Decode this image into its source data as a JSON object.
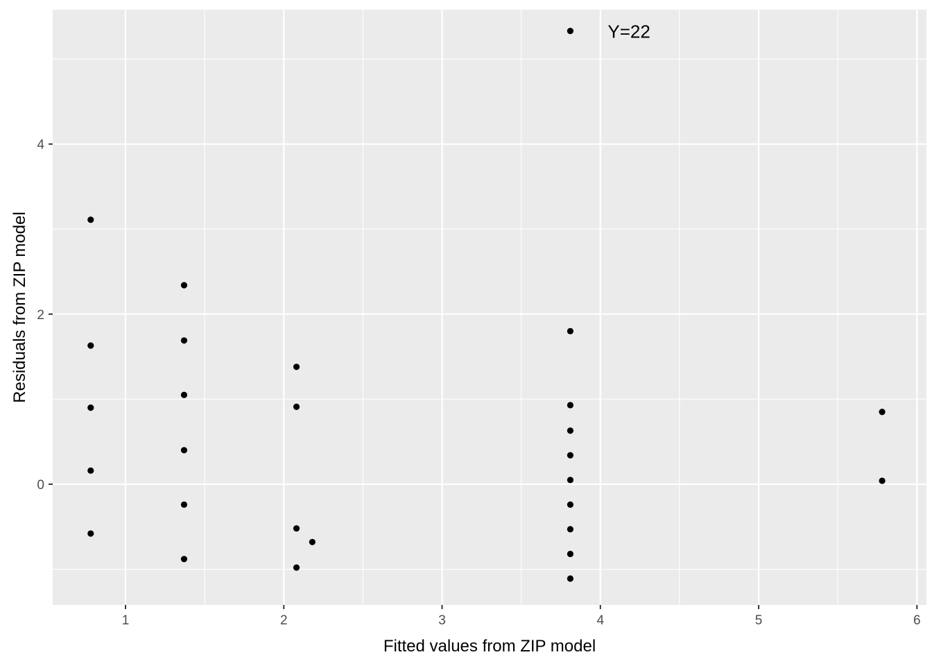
{
  "chart_data": {
    "type": "scatter",
    "title": "",
    "xlabel": "Fitted values from ZIP model",
    "ylabel": "Residuals from ZIP model",
    "xlim": [
      0.54,
      6.06
    ],
    "ylim": [
      -1.42,
      5.58
    ],
    "x_ticks": [
      1,
      2,
      3,
      4,
      5,
      6
    ],
    "x_tick_labels": [
      "1",
      "2",
      "3",
      "4",
      "5",
      "6"
    ],
    "y_ticks": [
      0,
      2,
      4
    ],
    "y_tick_labels": [
      "0",
      "2",
      "4"
    ],
    "grid": true,
    "legend": "none",
    "colors": {
      "panel": "#ebebeb",
      "grid": "#ffffff",
      "points": "#000000",
      "ticks": "#333333"
    },
    "series": [
      {
        "points": [
          {
            "x": 0.78,
            "y": 3.11
          },
          {
            "x": 0.78,
            "y": 1.63
          },
          {
            "x": 0.78,
            "y": 0.9
          },
          {
            "x": 0.78,
            "y": 0.16
          },
          {
            "x": 0.78,
            "y": -0.58
          },
          {
            "x": 1.37,
            "y": 2.34
          },
          {
            "x": 1.37,
            "y": 1.69
          },
          {
            "x": 1.37,
            "y": 1.05
          },
          {
            "x": 1.37,
            "y": 0.4
          },
          {
            "x": 1.37,
            "y": -0.24
          },
          {
            "x": 1.37,
            "y": -0.88
          },
          {
            "x": 2.08,
            "y": 1.38
          },
          {
            "x": 2.08,
            "y": 0.91
          },
          {
            "x": 2.08,
            "y": -0.52
          },
          {
            "x": 2.08,
            "y": -0.98
          },
          {
            "x": 2.18,
            "y": -0.68
          },
          {
            "x": 3.81,
            "y": 5.33
          },
          {
            "x": 3.81,
            "y": 1.8
          },
          {
            "x": 3.81,
            "y": 0.93
          },
          {
            "x": 3.81,
            "y": 0.63
          },
          {
            "x": 3.81,
            "y": 0.34
          },
          {
            "x": 3.81,
            "y": 0.05
          },
          {
            "x": 3.81,
            "y": -0.24
          },
          {
            "x": 3.81,
            "y": -0.53
          },
          {
            "x": 3.81,
            "y": -0.82
          },
          {
            "x": 3.81,
            "y": -1.11
          },
          {
            "x": 5.78,
            "y": 0.85
          },
          {
            "x": 5.78,
            "y": 0.04
          }
        ]
      }
    ],
    "annotations": [
      {
        "text": "Y=22",
        "x": 3.81,
        "y": 5.33
      }
    ]
  }
}
